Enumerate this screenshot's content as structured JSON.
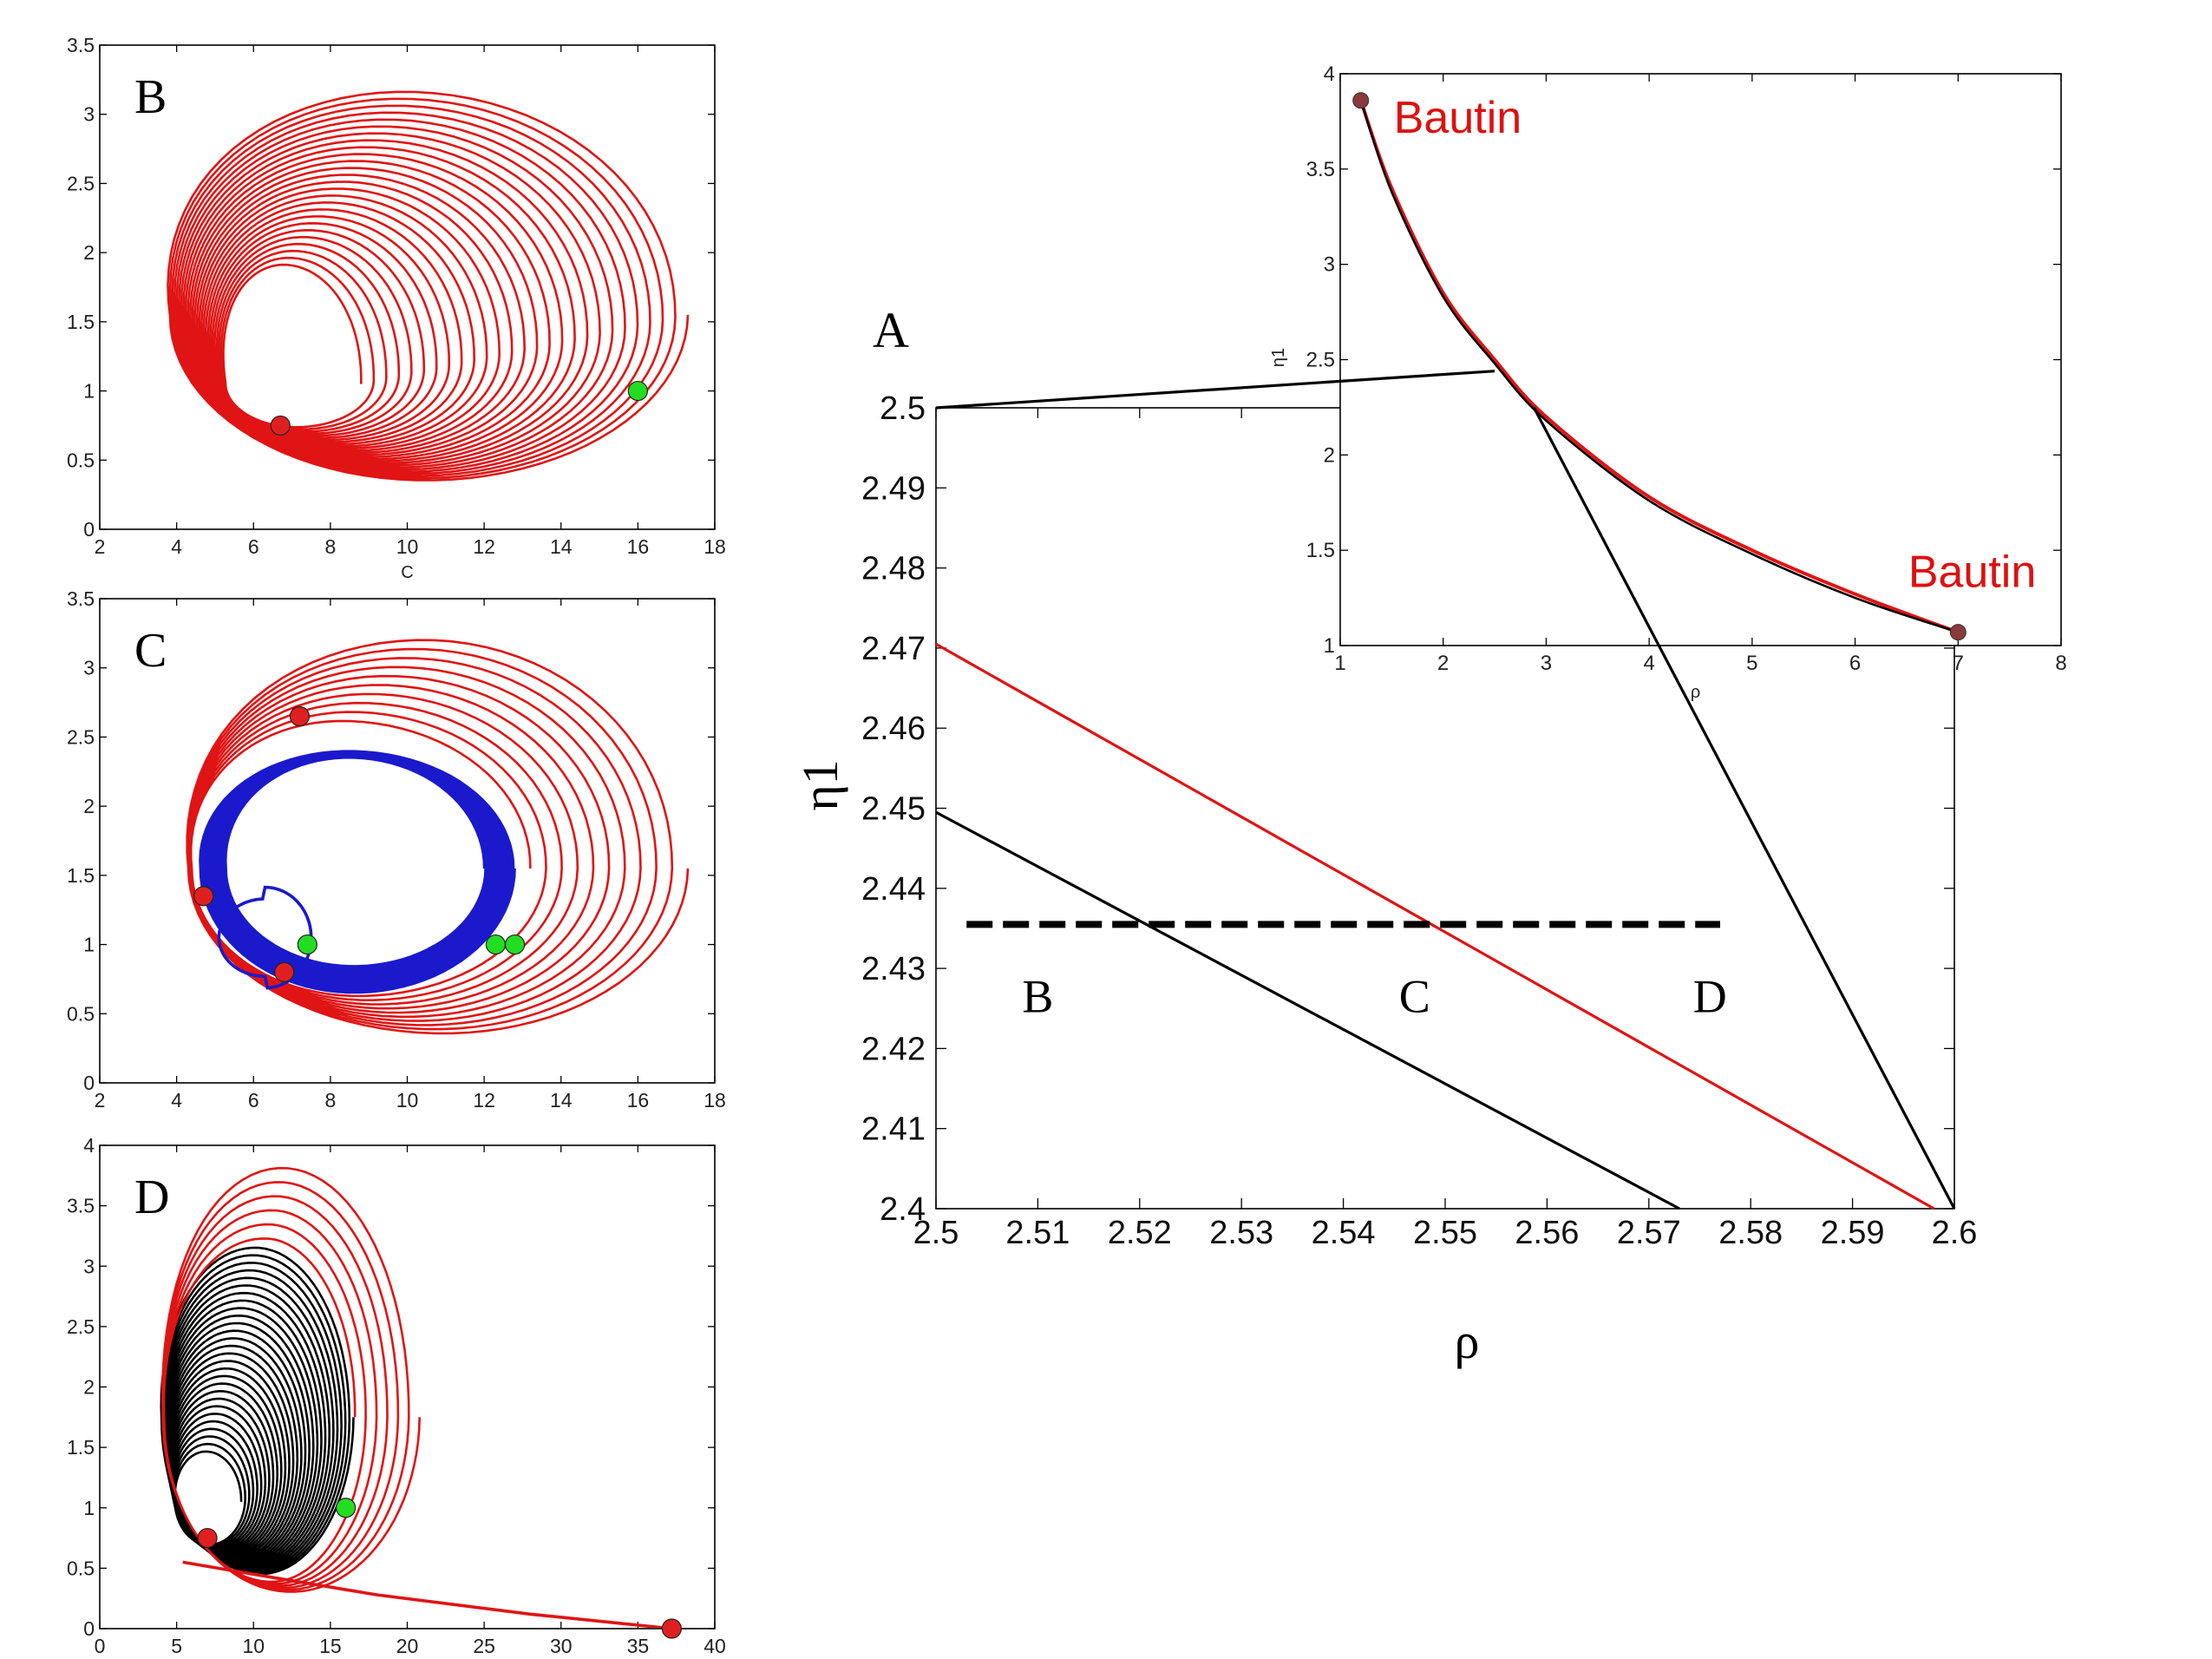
{
  "colors": {
    "red": "#e01414",
    "blue": "#1a1acc",
    "black": "#000000",
    "green": "#22dd22",
    "marker_red": "#e02020",
    "marker_brown": "#8a3a3a",
    "bautin_red": "#dd1111"
  },
  "chart_data": [
    {
      "id": "B",
      "panel_label": "B",
      "type": "line",
      "title": "",
      "xlabel": "C",
      "ylabel": "",
      "xlim": [
        2,
        18
      ],
      "ylim": [
        0,
        3.5
      ],
      "xticks": [
        2,
        4,
        6,
        8,
        10,
        12,
        14,
        16,
        18
      ],
      "yticks": [
        0,
        0.5,
        1,
        1.5,
        2,
        2.5,
        3,
        3.5
      ],
      "series": [
        {
          "name": "trajectory",
          "color": "red",
          "kind": "spiral",
          "inner": {
            "cx": 7.0,
            "cy": 1.05,
            "rxr": 1.8,
            "rxl": 1.7,
            "ryt": 0.85,
            "ryb": 0.3
          },
          "outer": {
            "cx": 10.5,
            "cy": 1.55,
            "rxr": 6.8,
            "rxl": 6.7,
            "ryt": 1.65,
            "ryb": 1.2
          },
          "loops": 26,
          "skew": 0.45
        }
      ],
      "markers": [
        {
          "name": "start",
          "x": 16.0,
          "y": 1.0,
          "color": "green"
        },
        {
          "name": "end",
          "x": 6.7,
          "y": 0.75,
          "color": "marker_red"
        }
      ]
    },
    {
      "id": "C",
      "panel_label": "C",
      "type": "line",
      "title": "",
      "xlabel": "",
      "ylabel": "",
      "xlim": [
        2,
        18
      ],
      "ylim": [
        0,
        3.5
      ],
      "xticks": [
        2,
        4,
        6,
        8,
        10,
        12,
        14,
        16,
        18
      ],
      "yticks": [
        0,
        0.5,
        1,
        1.5,
        2,
        2.5,
        3,
        3.5
      ],
      "series": [
        {
          "name": "outer trajectory",
          "color": "red",
          "kind": "spiral",
          "inner": {
            "cx": 8.5,
            "cy": 1.55,
            "rxr": 4.7,
            "rxl": 4.1,
            "ryt": 1.05,
            "ryb": 0.9
          },
          "outer": {
            "cx": 11.0,
            "cy": 1.55,
            "rxr": 6.3,
            "rxl": 6.7,
            "ryt": 1.7,
            "ryb": 1.2
          },
          "loops": 10,
          "skew": 0.35
        },
        {
          "name": "inner trajectory",
          "color": "blue",
          "kind": "spiral",
          "inner": {
            "cx": 8.6,
            "cy": 1.55,
            "rxr": 3.4,
            "rxl": 3.3,
            "ryt": 0.8,
            "ryb": 0.7
          },
          "outer": {
            "cx": 8.6,
            "cy": 1.55,
            "rxr": 4.2,
            "rxl": 4.0,
            "ryt": 0.85,
            "ryb": 0.9
          },
          "loops": 24,
          "skew": 0.25
        },
        {
          "name": "small loop",
          "color": "blue",
          "kind": "loop",
          "cx": 6.3,
          "cy": 1.05,
          "rx": 1.2,
          "ry": 0.28
        }
      ],
      "markers": [
        {
          "name": "start-red-top",
          "x": 7.2,
          "y": 2.65,
          "color": "marker_red"
        },
        {
          "name": "start-red-left",
          "x": 4.7,
          "y": 1.35,
          "color": "marker_red"
        },
        {
          "name": "end-red-bottom",
          "x": 6.8,
          "y": 0.8,
          "color": "marker_red"
        },
        {
          "name": "green-small",
          "x": 7.4,
          "y": 1.0,
          "color": "green"
        },
        {
          "name": "green-right-1",
          "x": 12.3,
          "y": 1.0,
          "color": "green"
        },
        {
          "name": "green-right-2",
          "x": 12.8,
          "y": 1.0,
          "color": "green"
        }
      ]
    },
    {
      "id": "D",
      "panel_label": "D",
      "type": "line",
      "title": "",
      "xlabel": "",
      "ylabel": "",
      "xlim": [
        0,
        40
      ],
      "ylim": [
        0,
        4
      ],
      "xticks": [
        0,
        5,
        10,
        15,
        20,
        25,
        30,
        35,
        40
      ],
      "yticks": [
        0,
        0.5,
        1,
        1.5,
        2,
        2.5,
        3,
        3.5,
        4
      ],
      "series": [
        {
          "name": "inner trajectory",
          "color": "black",
          "kind": "spiral",
          "inner": {
            "cx": 7.0,
            "cy": 1.05,
            "rxr": 2.2,
            "rxl": 2.1,
            "ryt": 0.4,
            "ryb": 0.35
          },
          "outer": {
            "cx": 10.5,
            "cy": 1.75,
            "rxr": 6.0,
            "rxl": 6.5,
            "ryt": 1.45,
            "ryb": 1.3
          },
          "loops": 28,
          "skew": 0.3
        },
        {
          "name": "outer trajectory",
          "color": "red",
          "kind": "spiral",
          "inner": {
            "cx": 11.0,
            "cy": 1.75,
            "rxr": 5.6,
            "rxl": 6.8,
            "ryt": 1.45,
            "ryb": 1.35
          },
          "outer": {
            "cx": 12.5,
            "cy": 1.75,
            "rxr": 8.3,
            "rxl": 8.4,
            "ryt": 2.15,
            "ryb": 1.45
          },
          "loops": 6,
          "skew": 0.3
        },
        {
          "name": "tail",
          "color": "red",
          "kind": "polyline",
          "points": [
            [
              37.2,
              0.0
            ],
            [
              28,
              0.12
            ],
            [
              18,
              0.28
            ],
            [
              10,
              0.45
            ],
            [
              5.4,
              0.55
            ]
          ]
        }
      ],
      "markers": [
        {
          "name": "far-start",
          "x": 37.2,
          "y": 0.0,
          "color": "marker_red"
        },
        {
          "name": "green-start",
          "x": 16.0,
          "y": 1.0,
          "color": "green"
        },
        {
          "name": "end",
          "x": 7.0,
          "y": 0.75,
          "color": "marker_red"
        }
      ]
    },
    {
      "id": "A",
      "panel_label": "A",
      "type": "line",
      "title": "",
      "xlabel": "ρ",
      "ylabel": "η1",
      "xlim": [
        2.5,
        2.6
      ],
      "ylim": [
        2.4,
        2.5
      ],
      "xticks": [
        2.5,
        2.51,
        2.52,
        2.53,
        2.54,
        2.55,
        2.56,
        2.57,
        2.58,
        2.59,
        2.6
      ],
      "yticks": [
        2.4,
        2.41,
        2.42,
        2.43,
        2.44,
        2.45,
        2.46,
        2.47,
        2.48,
        2.49,
        2.5
      ],
      "series": [
        {
          "name": "red boundary",
          "color": "red",
          "x": [
            2.5,
            2.598
          ],
          "y": [
            2.4705,
            2.4
          ]
        },
        {
          "name": "black boundary",
          "color": "black",
          "x": [
            2.5,
            2.573
          ],
          "y": [
            2.4495,
            2.4
          ]
        },
        {
          "name": "dashed line",
          "color": "black",
          "style": "dashed",
          "x": [
            2.503,
            2.577
          ],
          "y": [
            2.4355,
            2.4355
          ]
        }
      ],
      "region_labels": [
        {
          "text": "B",
          "x": 2.51,
          "y": 2.4265
        },
        {
          "text": "C",
          "x": 2.547,
          "y": 2.4265
        },
        {
          "text": "D",
          "x": 2.576,
          "y": 2.4265
        }
      ]
    },
    {
      "id": "inset",
      "type": "line",
      "title": "",
      "xlabel": "ρ",
      "ylabel": "η1",
      "xlim": [
        1,
        8
      ],
      "ylim": [
        1,
        4
      ],
      "xticks": [
        1,
        2,
        3,
        4,
        5,
        6,
        7,
        8
      ],
      "yticks": [
        1,
        1.5,
        2,
        2.5,
        3,
        3.5,
        4
      ],
      "series": [
        {
          "name": "Bautin curve (red)",
          "color": "red",
          "x": [
            1.2,
            1.5,
            2.0,
            2.5,
            3.0,
            4.0,
            5.0,
            6.0,
            7.0
          ],
          "y": [
            3.86,
            3.4,
            2.85,
            2.5,
            2.2,
            1.78,
            1.5,
            1.27,
            1.07
          ]
        },
        {
          "name": "curve (black)",
          "color": "black",
          "x": [
            1.2,
            1.5,
            2.0,
            2.5,
            3.0,
            4.0,
            5.0,
            6.0,
            7.0
          ],
          "y": [
            3.86,
            3.38,
            2.83,
            2.48,
            2.18,
            1.76,
            1.48,
            1.25,
            1.07
          ]
        }
      ],
      "annotations": [
        {
          "text": "Bautin",
          "x": 1.2,
          "y": 3.86,
          "color": "bautin_red"
        },
        {
          "text": "Bautin",
          "x": 7.0,
          "y": 1.07,
          "color": "bautin_red"
        }
      ]
    }
  ],
  "connectors": [
    {
      "from": "A plot top-left (2.5, 2.5)",
      "to": "inset (2.5, 2.44)"
    },
    {
      "from": "A plot bottom-right (2.6, 2.4)",
      "to": "inset (2.88, 2.25)"
    }
  ]
}
